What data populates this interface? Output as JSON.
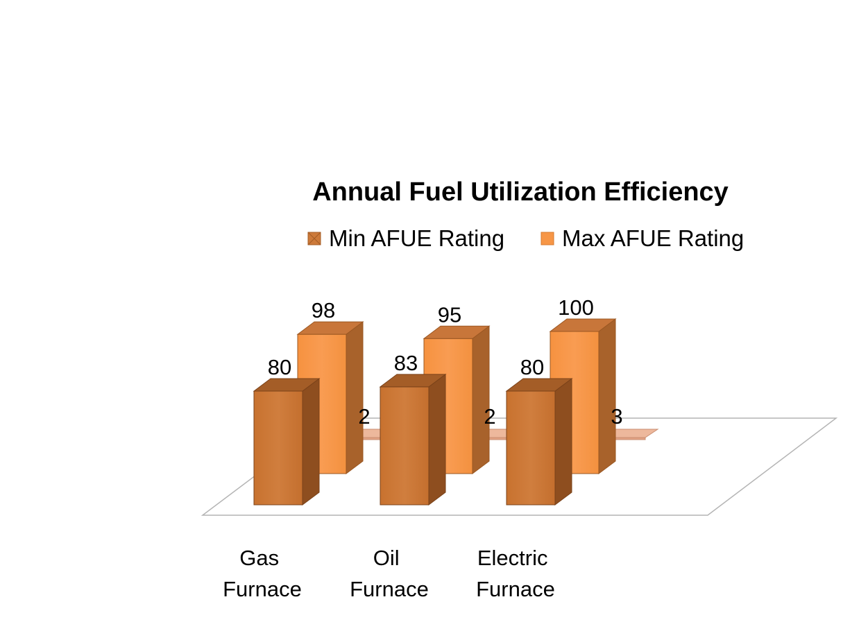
{
  "chart_data": {
    "type": "bar",
    "subtype": "3d-clustered-column",
    "title": "Annual Fuel Utilization Efficiency",
    "categories": [
      "Gas Furnace",
      "Oil Furnace",
      "Electric Furnace"
    ],
    "series": [
      {
        "name": "Min AFUE Rating",
        "values": [
          80,
          83,
          80
        ],
        "color": "#CD7A3A"
      },
      {
        "name": "Max AFUE Rating",
        "values": [
          98,
          95,
          100
        ],
        "color": "#F79646"
      },
      {
        "name": "",
        "values": [
          2,
          2,
          3
        ],
        "color": "#E6AA8E"
      }
    ],
    "xlabel": "",
    "ylabel": "",
    "legend_position": "top",
    "grid": false
  }
}
